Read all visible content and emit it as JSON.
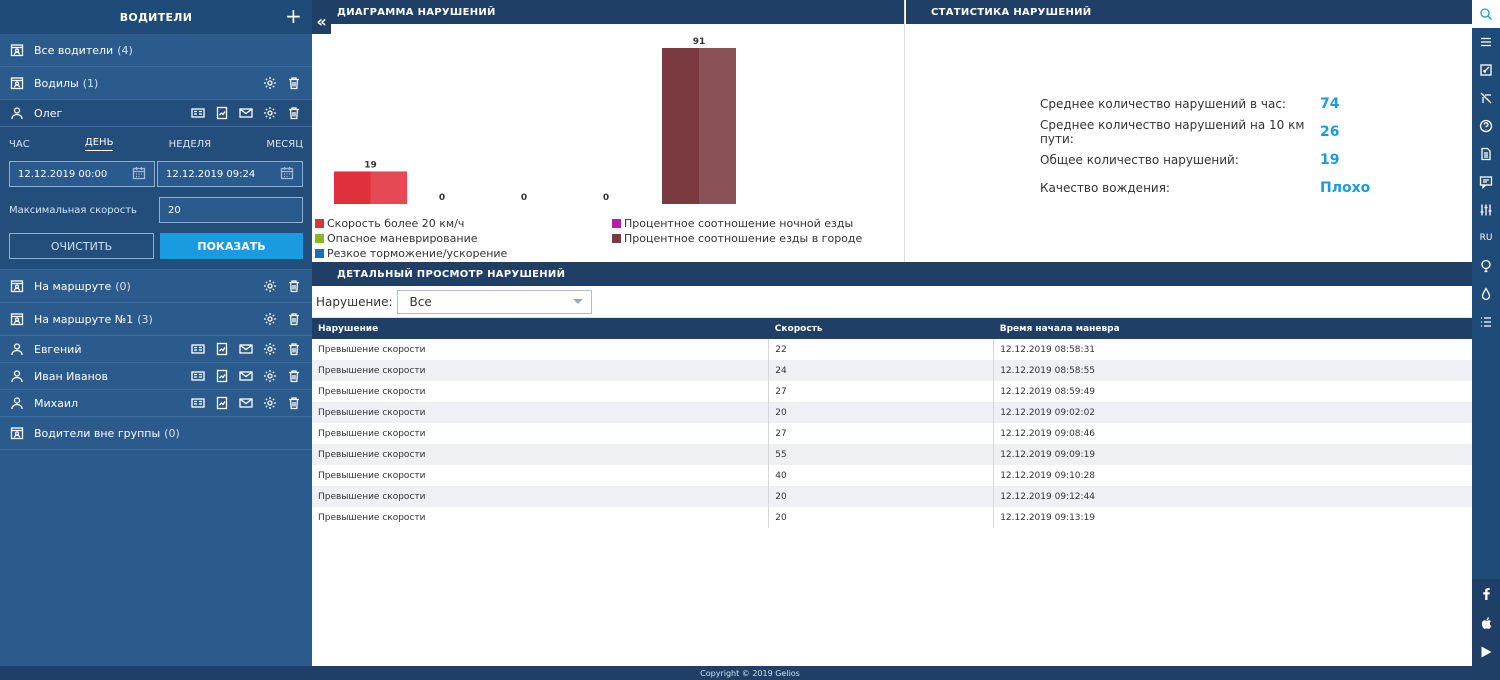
{
  "sidebar": {
    "title": "ВОДИТЕЛИ",
    "groups_top": [
      {
        "name": "Все водители",
        "count": "(4)"
      },
      {
        "name": "Водилы",
        "count": "(1)"
      }
    ],
    "active_driver": "Олег",
    "filter": {
      "periods": [
        "ЧАС",
        "ДЕНЬ",
        "НЕДЕЛЯ",
        "МЕСЯЦ"
      ],
      "selected_period": "ДЕНЬ",
      "date_from": "12.12.2019 00:00",
      "date_to": "12.12.2019 09:24",
      "max_speed_label": "Максимальная скорость",
      "max_speed_value": "20",
      "clear_label": "ОЧИСТИТЬ",
      "show_label": "ПОКАЗАТЬ"
    },
    "groups_mid": [
      {
        "name": "На маршруте",
        "count": "(0)"
      },
      {
        "name": "На маршруте №1",
        "count": "(3)"
      }
    ],
    "drivers": [
      "Евгений",
      "Иван Иванов",
      "Михаил"
    ],
    "group_bottom": {
      "name": "Водители вне группы",
      "count": "(0)"
    }
  },
  "chart_panel": {
    "title": "ДИАГРАММА НАРУШЕНИЙ"
  },
  "chart_data": {
    "type": "bar",
    "categories": [
      "Скорость более 20 км/ч",
      "Опасное маневрирование",
      "Резкое торможение/ускорение",
      "Процентное соотношение ночной езды",
      "Процентное соотношение езды в городе"
    ],
    "values": [
      19,
      0,
      0,
      0,
      91
    ],
    "colors": [
      "#e0303c",
      "#8ab820",
      "#1a6fb8",
      "#b020a8",
      "#7a3a40"
    ],
    "title": "",
    "xlabel": "",
    "ylabel": "",
    "ylim": [
      0,
      91
    ],
    "grid": false,
    "legend": "bottom"
  },
  "stats_panel": {
    "title": "СТАТИСТИКА НАРУШЕНИЙ",
    "rows": [
      {
        "label": "Среднее количество нарушений в час:",
        "value": "74"
      },
      {
        "label": "Среднее количество нарушений на 10 км пути:",
        "value": "26"
      },
      {
        "label": "Общее количество нарушений:",
        "value": "19"
      },
      {
        "label": "Качество вождения:",
        "value": "Плохо"
      }
    ]
  },
  "detail_panel": {
    "title": "ДЕТАЛЬНЫЙ ПРОСМОТР НАРУШЕНИЙ",
    "filter_label": "Нарушение:",
    "filter_value": "Все",
    "columns": [
      "Нарушение",
      "Скорость",
      "Время начала маневра"
    ],
    "rows": [
      [
        "Превышение скорости",
        "22",
        "12.12.2019 08:58:31"
      ],
      [
        "Превышение скорости",
        "24",
        "12.12.2019 08:58:55"
      ],
      [
        "Превышение скорости",
        "27",
        "12.12.2019 08:59:49"
      ],
      [
        "Превышение скорости",
        "20",
        "12.12.2019 09:02:02"
      ],
      [
        "Превышение скорости",
        "27",
        "12.12.2019 09:08:46"
      ],
      [
        "Превышение скорости",
        "55",
        "12.12.2019 09:09:19"
      ],
      [
        "Превышение скорости",
        "40",
        "12.12.2019 09:10:28"
      ],
      [
        "Превышение скорости",
        "20",
        "12.12.2019 09:12:44"
      ],
      [
        "Превышение скорости",
        "20",
        "12.12.2019 09:13:19"
      ]
    ]
  },
  "rightbar": {
    "lang": "RU",
    "icons": [
      "search-icon",
      "menu-icon",
      "edit-icon",
      "route-icon",
      "help-icon",
      "document-icon",
      "message-icon",
      "sliders-icon",
      "language-icon",
      "balloon-icon",
      "drop-icon",
      "list-icon"
    ],
    "social": [
      "facebook-icon",
      "apple-icon",
      "google-play-icon"
    ]
  },
  "footer": {
    "text": "Copyright © 2019 Gelios"
  }
}
